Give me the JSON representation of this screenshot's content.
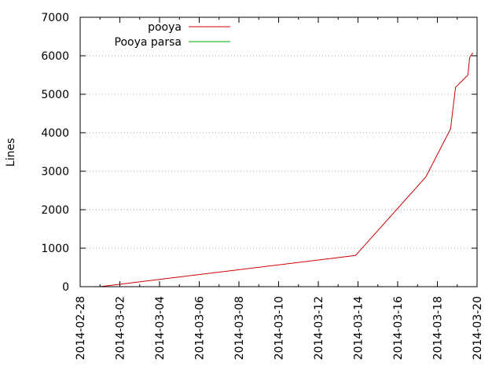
{
  "chart_data": {
    "type": "line",
    "title": "",
    "xlabel": "",
    "ylabel": "Lines",
    "x_type": "date",
    "xlim": [
      "2014-02-28",
      "2014-03-20"
    ],
    "ylim": [
      0,
      7000
    ],
    "y_ticks": [
      0,
      1000,
      2000,
      3000,
      4000,
      5000,
      6000,
      7000
    ],
    "x_ticks": [
      "2014-02-28",
      "2014-03-02",
      "2014-03-04",
      "2014-03-06",
      "2014-03-08",
      "2014-03-10",
      "2014-03-12",
      "2014-03-14",
      "2014-03-16",
      "2014-03-18",
      "2014-03-20"
    ],
    "grid": true,
    "legend_position": "top-left",
    "series": [
      {
        "name": "pooya",
        "color": "#cc0000",
        "points": [
          {
            "x": "2014-03-01T00:00",
            "y": 0
          },
          {
            "x": "2014-03-13T21:00",
            "y": 810
          },
          {
            "x": "2014-03-17T10:00",
            "y": 2850
          },
          {
            "x": "2014-03-18T16:00",
            "y": 4100
          },
          {
            "x": "2014-03-18T22:00",
            "y": 5180
          },
          {
            "x": "2014-03-19T13:00",
            "y": 5500
          },
          {
            "x": "2014-03-19T15:00",
            "y": 5950
          },
          {
            "x": "2014-03-19T19:00",
            "y": 6080
          }
        ]
      },
      {
        "name": "Pooya parsa",
        "color": "#00aa00",
        "points": []
      }
    ]
  }
}
